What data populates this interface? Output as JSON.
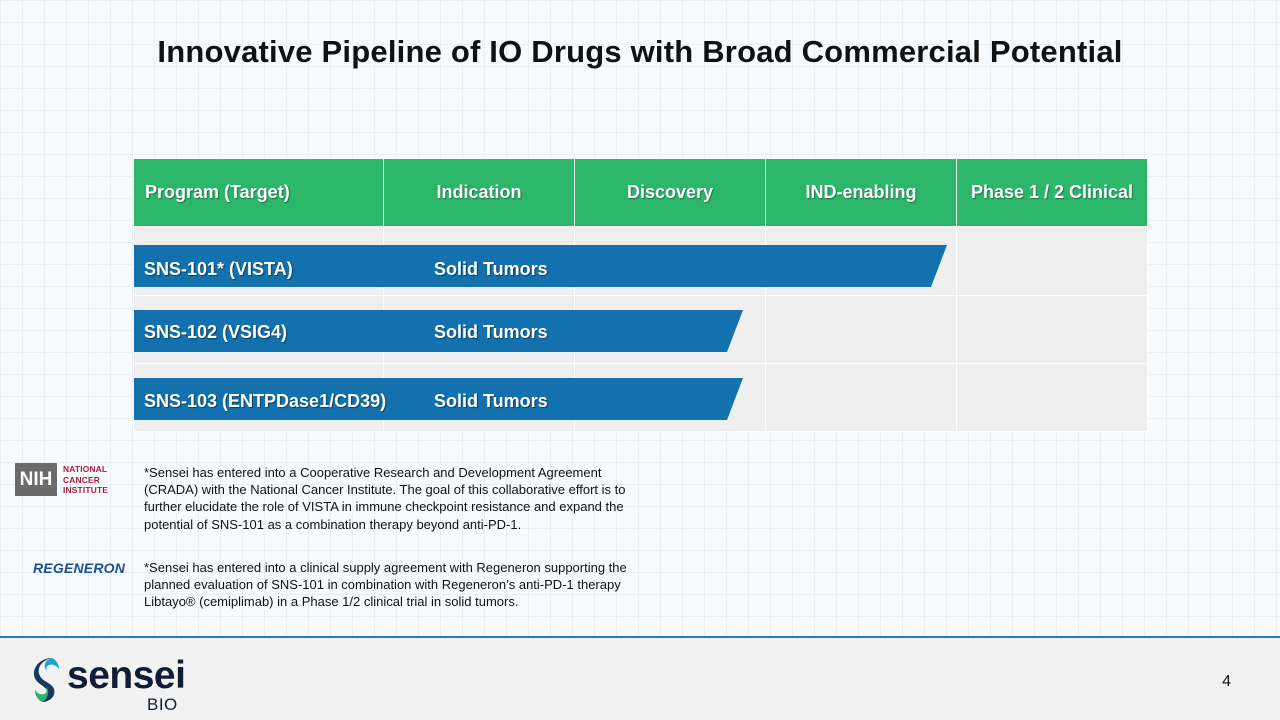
{
  "title": "Innovative Pipeline of IO Drugs with Broad Commercial Potential",
  "table": {
    "headers": [
      "Program (Target)",
      "Indication",
      "Discovery",
      "IND-enabling",
      "Phase 1 / 2 Clinical"
    ],
    "programs": [
      {
        "name": "SNS-101* (VISTA)",
        "indication": "Solid Tumors",
        "stage": "IND-enabling"
      },
      {
        "name": "SNS-102 (VSIG4)",
        "indication": "Solid Tumors",
        "stage": "Discovery"
      },
      {
        "name": "SNS-103 (ENTPDase1/CD39)",
        "indication": "Solid Tumors",
        "stage": "Discovery"
      }
    ],
    "colors": {
      "header": "#2bb66a",
      "bar": "#1372ad",
      "cell": "#efefef"
    }
  },
  "notes": {
    "nih": {
      "logo_box": "NIH",
      "logo_text_1": "NATIONAL",
      "logo_text_2": "CANCER",
      "logo_text_3": "INSTITUTE",
      "text": "*Sensei has entered into a Cooperative Research and Development Agreement (CRADA) with the National Cancer Institute. The goal of this collaborative effort is to further elucidate the role of VISTA in immune checkpoint resistance and expand the potential of SNS-101 as a combination therapy beyond anti-PD-1."
    },
    "regeneron": {
      "logo_text": "REGENERON",
      "text": "*Sensei has entered into a clinical supply agreement with Regeneron supporting the planned evaluation of SNS-101 in combination with Regeneron’s anti-PD-1 therapy Libtayo® (cemiplimab) in a Phase 1/2 clinical trial in solid tumors."
    }
  },
  "footer": {
    "logo_word": "sensei",
    "logo_tm": "™",
    "logo_sub": "BIO",
    "page_number": "4"
  }
}
